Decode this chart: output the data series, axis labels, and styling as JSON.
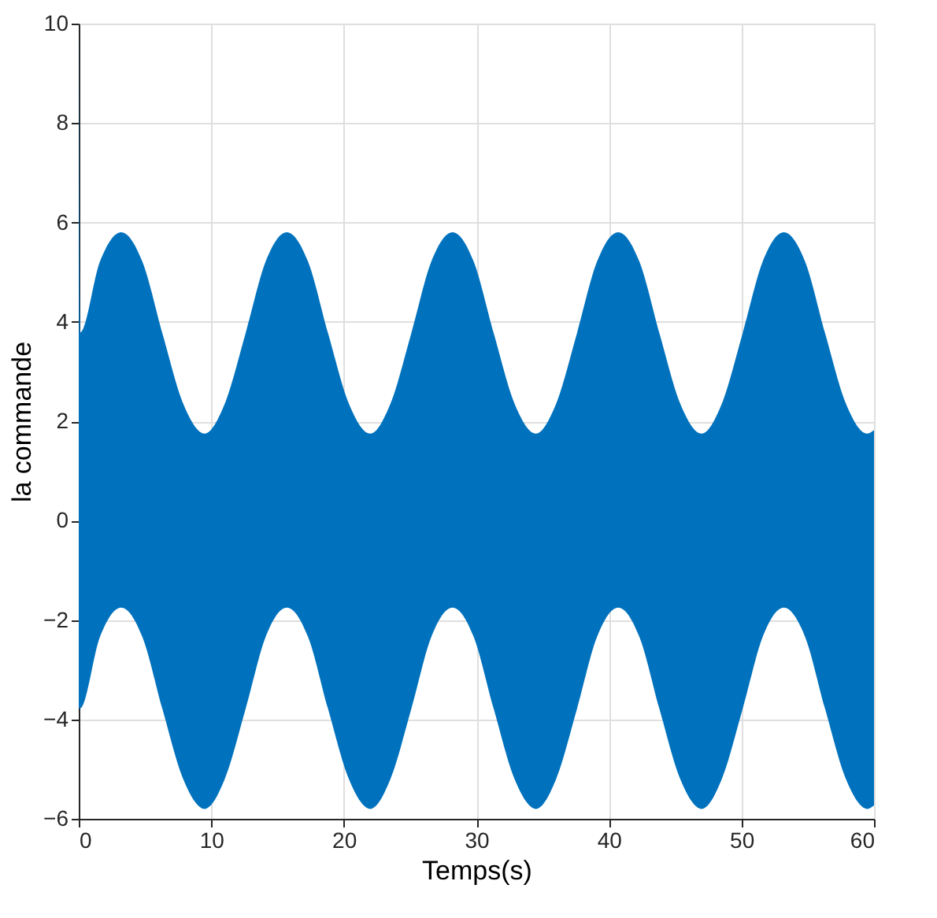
{
  "chart_data": {
    "type": "line",
    "xlabel": "Temps(s)",
    "ylabel": "la commande",
    "xlim": [
      0,
      60
    ],
    "ylim": [
      -6,
      10
    ],
    "xticks": [
      0,
      10,
      20,
      30,
      40,
      50,
      60
    ],
    "yticks": [
      -6,
      -4,
      -2,
      0,
      2,
      4,
      6,
      8,
      10
    ],
    "grid": true,
    "x": [
      0,
      0.1,
      1.6,
      3.2,
      4.8,
      6.3,
      7.9,
      9.5,
      11.0,
      12.6,
      14.1,
      15.7,
      17.3,
      18.8,
      20.4,
      22.0,
      23.5,
      25.1,
      26.6,
      28.2,
      29.8,
      31.3,
      32.9,
      34.5,
      36.0,
      37.6,
      39.1,
      40.7,
      42.3,
      43.8,
      45.4,
      47.0,
      48.5,
      50.1,
      51.6,
      53.2,
      54.8,
      56.3,
      57.9,
      59.5,
      60
    ],
    "series": [
      {
        "color": "#0072bd",
        "values": [
          0,
          0,
          0,
          0,
          0,
          0,
          0,
          0,
          0,
          0,
          0,
          0,
          0,
          0,
          0,
          0,
          0,
          0,
          0,
          0,
          0,
          0,
          0,
          0,
          0,
          0,
          0,
          0,
          0,
          0,
          0,
          0,
          0,
          0,
          0,
          0,
          0,
          0,
          0,
          0,
          0
        ],
        "upper": [
          10,
          3.78,
          5.21,
          5.8,
          5.21,
          3.78,
          2.34,
          1.75,
          2.34,
          3.78,
          5.21,
          5.8,
          5.21,
          3.78,
          2.34,
          1.75,
          2.34,
          3.78,
          5.21,
          5.8,
          5.21,
          3.78,
          2.34,
          1.75,
          2.34,
          3.78,
          5.21,
          5.8,
          5.21,
          3.78,
          2.34,
          1.75,
          2.34,
          3.78,
          5.21,
          5.8,
          5.21,
          3.78,
          2.34,
          1.75,
          1.82
        ],
        "lower": [
          -3.78,
          -3.78,
          -2.34,
          -1.75,
          -2.34,
          -3.78,
          -5.21,
          -5.8,
          -5.21,
          -3.78,
          -2.34,
          -1.75,
          -2.34,
          -3.78,
          -5.21,
          -5.8,
          -5.21,
          -3.78,
          -2.34,
          -1.75,
          -2.34,
          -3.78,
          -5.21,
          -5.8,
          -5.21,
          -3.78,
          -2.34,
          -1.75,
          -2.34,
          -3.78,
          -5.21,
          -5.8,
          -5.21,
          -3.78,
          -2.34,
          -1.75,
          -2.34,
          -3.78,
          -5.21,
          -5.8,
          -5.73
        ]
      }
    ]
  }
}
